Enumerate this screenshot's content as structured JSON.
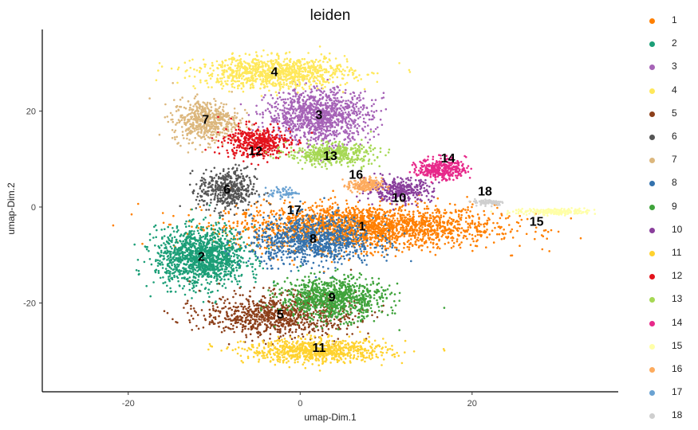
{
  "chart_data": {
    "type": "scatter",
    "title": "leiden",
    "xlabel": "umap-Dim.1",
    "ylabel": "umap-Dim.2",
    "xlim": [
      -30,
      37
    ],
    "ylim": [
      -38.5,
      37
    ],
    "x_ticks": [
      -20,
      0,
      20
    ],
    "y_ticks": [
      -20,
      0,
      20
    ],
    "grid": false,
    "legend_position": "right",
    "legend": [
      {
        "label": "1",
        "color": "#ff7f00"
      },
      {
        "label": "2",
        "color": "#1b9e77"
      },
      {
        "label": "3",
        "color": "#a663b7"
      },
      {
        "label": "4",
        "color": "#ffe85a"
      },
      {
        "label": "5",
        "color": "#8c3f1a"
      },
      {
        "label": "6",
        "color": "#555555"
      },
      {
        "label": "7",
        "color": "#dcb77d"
      },
      {
        "label": "8",
        "color": "#3472ad"
      },
      {
        "label": "9",
        "color": "#3fa33b"
      },
      {
        "label": "10",
        "color": "#8a3f9c"
      },
      {
        "label": "11",
        "color": "#ffd22e"
      },
      {
        "label": "12",
        "color": "#e3131c"
      },
      {
        "label": "13",
        "color": "#a6d854"
      },
      {
        "label": "14",
        "color": "#e7298a"
      },
      {
        "label": "15",
        "color": "#ffffa8"
      },
      {
        "label": "16",
        "color": "#fdab5e"
      },
      {
        "label": "17",
        "color": "#6aa2d2"
      },
      {
        "label": "18",
        "color": "#cfcfcf"
      }
    ],
    "clusters": [
      {
        "label": "1",
        "x": 7.2,
        "y": -4.2,
        "spread": [
          14,
          4.2
        ],
        "n": 2200
      },
      {
        "label": "2",
        "x": -11.5,
        "y": -10.5,
        "spread": [
          4.8,
          5.5
        ],
        "n": 1300
      },
      {
        "label": "3",
        "x": 2.2,
        "y": 19,
        "spread": [
          5.5,
          5
        ],
        "n": 1100
      },
      {
        "label": "4",
        "x": -3.0,
        "y": 28,
        "spread": [
          8,
          3
        ],
        "n": 1000
      },
      {
        "label": "5",
        "x": -2.5,
        "y": -22.5,
        "spread": [
          8,
          4
        ],
        "n": 900
      },
      {
        "label": "6",
        "x": -8.5,
        "y": 3.5,
        "spread": [
          3,
          4
        ],
        "n": 450
      },
      {
        "label": "7",
        "x": -11.0,
        "y": 18,
        "spread": [
          3.5,
          4
        ],
        "n": 550
      },
      {
        "label": "8",
        "x": 1.5,
        "y": -7.0,
        "spread": [
          6.5,
          4.5
        ],
        "n": 900
      },
      {
        "label": "9",
        "x": 3.8,
        "y": -19.0,
        "spread": [
          5.5,
          4
        ],
        "n": 900
      },
      {
        "label": "10",
        "x": 11.5,
        "y": 3.5,
        "spread": [
          3.5,
          2.2
        ],
        "n": 350
      },
      {
        "label": "11",
        "x": 2.0,
        "y": -30.0,
        "spread": [
          7.5,
          2.2
        ],
        "n": 800
      },
      {
        "label": "12",
        "x": -5.0,
        "y": 13.5,
        "spread": [
          3.5,
          3
        ],
        "n": 450
      },
      {
        "label": "13",
        "x": 3.5,
        "y": 11,
        "spread": [
          4.5,
          2
        ],
        "n": 450
      },
      {
        "label": "14",
        "x": 16.5,
        "y": 8,
        "spread": [
          2.5,
          2
        ],
        "n": 350
      },
      {
        "label": "15",
        "x": 29.5,
        "y": -1.0,
        "spread": [
          4.5,
          0.6
        ],
        "n": 200
      },
      {
        "label": "16",
        "x": 7.5,
        "y": 4.5,
        "spread": [
          1.8,
          1.4
        ],
        "n": 180
      },
      {
        "label": "17",
        "x": -2.0,
        "y": 3.0,
        "spread": [
          1.5,
          1
        ],
        "n": 60
      },
      {
        "label": "18",
        "x": 22.0,
        "y": 1.0,
        "spread": [
          1.6,
          0.6
        ],
        "n": 90
      }
    ],
    "cluster_annotations": [
      {
        "text": "1",
        "x": 7.2,
        "y": -4.2
      },
      {
        "text": "2",
        "x": -11.5,
        "y": -10.5
      },
      {
        "text": "3",
        "x": 2.2,
        "y": 19
      },
      {
        "text": "4",
        "x": -3.0,
        "y": 28
      },
      {
        "text": "5",
        "x": -2.3,
        "y": -22.5
      },
      {
        "text": "6",
        "x": -8.5,
        "y": 3.5
      },
      {
        "text": "7",
        "x": -11.0,
        "y": 18
      },
      {
        "text": "8",
        "x": 1.5,
        "y": -6.8
      },
      {
        "text": "9",
        "x": 3.7,
        "y": -19.0
      },
      {
        "text": "10",
        "x": 11.5,
        "y": 1.8
      },
      {
        "text": "11",
        "x": 2.2,
        "y": -29.5
      },
      {
        "text": "12",
        "x": -5.2,
        "y": 11.5
      },
      {
        "text": "13",
        "x": 3.5,
        "y": 10.5
      },
      {
        "text": "14",
        "x": 17.2,
        "y": 10
      },
      {
        "text": "15",
        "x": 27.5,
        "y": -3.2
      },
      {
        "text": "16",
        "x": 6.5,
        "y": 6.6
      },
      {
        "text": "17",
        "x": -0.7,
        "y": -0.8
      },
      {
        "text": "18",
        "x": 21.5,
        "y": 3.1
      }
    ]
  }
}
